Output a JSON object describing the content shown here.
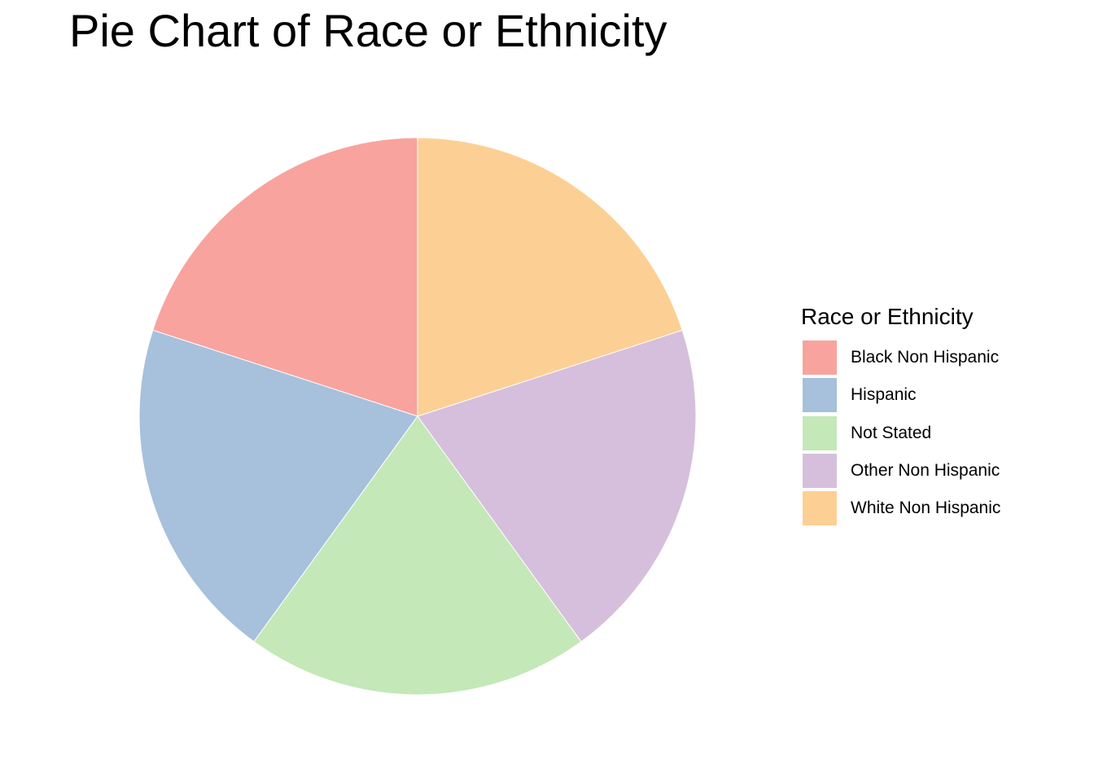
{
  "chart_data": {
    "type": "pie",
    "title": "Pie Chart of Race or Ethnicity",
    "legend_title": "Race or Ethnicity",
    "legend_position": "right",
    "categories": [
      "Black Non Hispanic",
      "Hispanic",
      "Not Stated",
      "Other Non Hispanic",
      "White Non Hispanic"
    ],
    "values": [
      20,
      20,
      20,
      20,
      20
    ],
    "colors": [
      "#F8A39E",
      "#A7C0DB",
      "#C4E8B8",
      "#D6BFDC",
      "#FCD094"
    ],
    "start": "top",
    "direction": "counterclockwise"
  }
}
